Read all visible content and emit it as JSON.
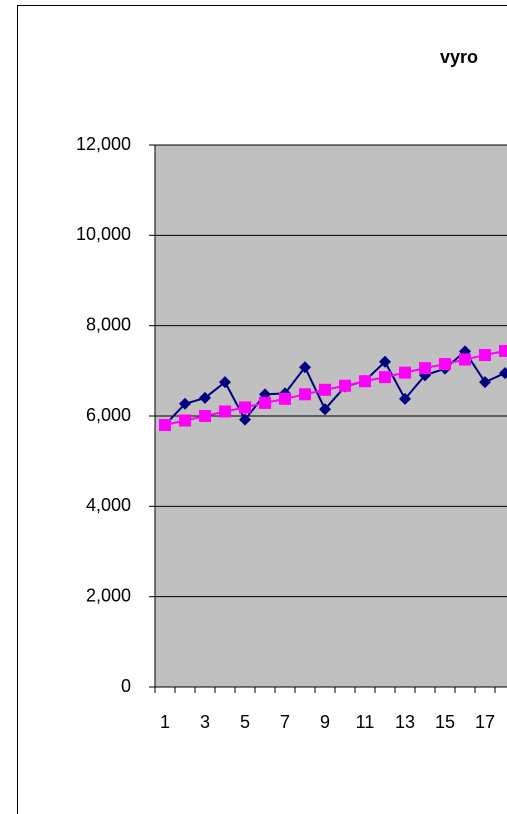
{
  "chart_data": {
    "type": "line",
    "title": "vyro",
    "categories": [
      "1",
      null,
      "3",
      null,
      "5",
      null,
      "7",
      null,
      "9",
      null,
      "11",
      null,
      "13",
      null,
      "15",
      null,
      "17",
      null
    ],
    "series": [
      {
        "color": "#000080",
        "marker": "diamond",
        "values": [
          5800,
          6270,
          6400,
          6750,
          5920,
          6480,
          6500,
          7080,
          6150,
          6650,
          6780,
          7200,
          6380,
          6900,
          7050,
          7430,
          6750,
          6950
        ]
      },
      {
        "color": "#ff00ff",
        "marker": "square",
        "values": [
          5800,
          5900,
          6000,
          6100,
          6190,
          6290,
          6380,
          6480,
          6580,
          6670,
          6770,
          6860,
          6960,
          7060,
          7150,
          7250,
          7350,
          7440
        ]
      }
    ],
    "ylim": [
      0,
      12000
    ],
    "yticks": [
      {
        "value": 0,
        "label": "0"
      },
      {
        "value": 2000,
        "label": "2,000"
      },
      {
        "value": 4000,
        "label": "4,000"
      },
      {
        "value": 6000,
        "label": "6,000"
      },
      {
        "value": 8000,
        "label": "8,000"
      },
      {
        "value": 10000,
        "label": "10,000"
      },
      {
        "value": 12000,
        "label": "12,000"
      }
    ],
    "grid": true,
    "plot_color": "#c0c0c0"
  }
}
